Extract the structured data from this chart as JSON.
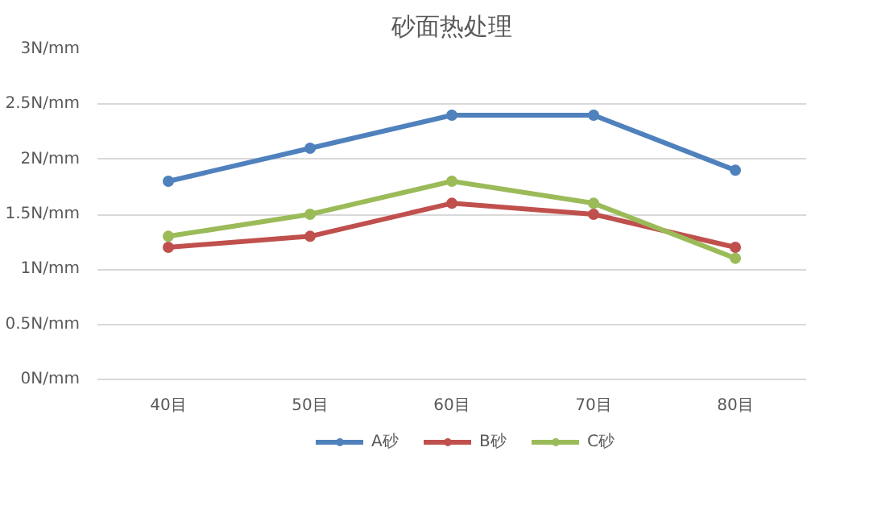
{
  "chart_data": {
    "type": "line",
    "title": "砂面热处理",
    "categories": [
      "40目",
      "50目",
      "60目",
      "70目",
      "80目"
    ],
    "series": [
      {
        "name": "A砂",
        "color": "#4f81bd",
        "values": [
          1.8,
          2.1,
          2.4,
          2.4,
          1.9
        ]
      },
      {
        "name": "B砂",
        "color": "#c0504d",
        "values": [
          1.2,
          1.3,
          1.6,
          1.5,
          1.2
        ]
      },
      {
        "name": "C砂",
        "color": "#9bbb59",
        "values": [
          1.3,
          1.5,
          1.8,
          1.6,
          1.1
        ]
      }
    ],
    "ylim": [
      0,
      3
    ],
    "yticks": [
      {
        "value": 0,
        "label": "0N/mm"
      },
      {
        "value": 0.5,
        "label": "0.5N/mm"
      },
      {
        "value": 1,
        "label": "1N/mm"
      },
      {
        "value": 1.5,
        "label": "1.5N/mm"
      },
      {
        "value": 2,
        "label": "2N/mm"
      },
      {
        "value": 2.5,
        "label": "2.5N/mm"
      },
      {
        "value": 3,
        "label": "3N/mm"
      }
    ],
    "grid": "y",
    "legend": "bottom",
    "marker": "circle",
    "line_style": "solid"
  }
}
